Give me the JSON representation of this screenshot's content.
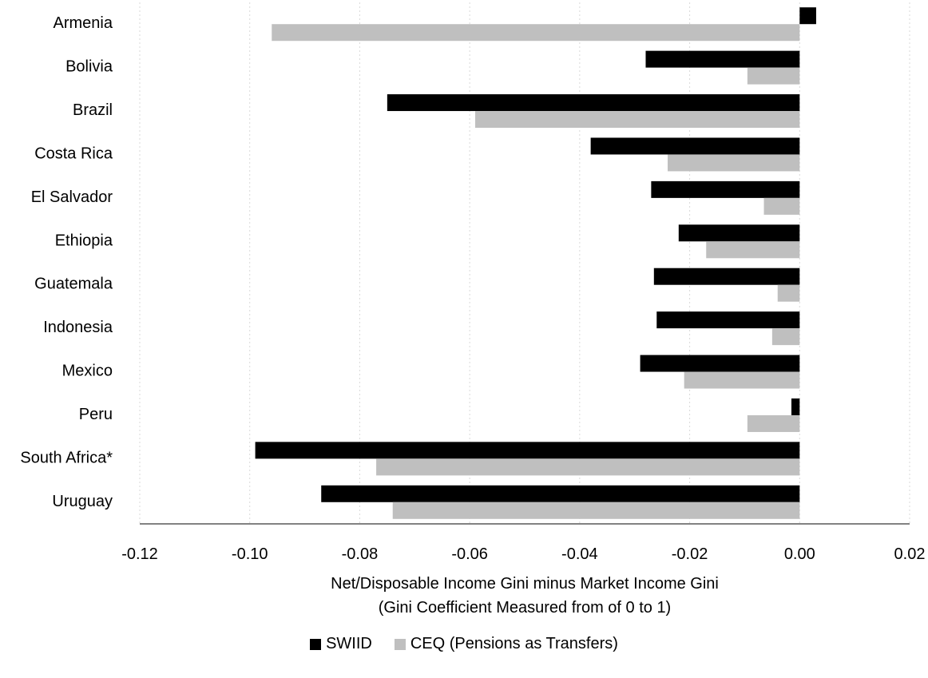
{
  "chart_data": {
    "type": "bar",
    "orientation": "horizontal",
    "categories": [
      "Armenia",
      "Bolivia",
      "Brazil",
      "Costa Rica",
      "El Salvador",
      "Ethiopia",
      "Guatemala",
      "Indonesia",
      "Mexico",
      "Peru",
      "South Africa*",
      "Uruguay"
    ],
    "series": [
      {
        "name": "SWIID",
        "color": "#000000",
        "values": [
          0.003,
          -0.028,
          -0.075,
          -0.038,
          -0.027,
          -0.022,
          -0.0265,
          -0.026,
          -0.029,
          -0.0015,
          -0.099,
          -0.087
        ]
      },
      {
        "name": "CEQ (Pensions as Transfers)",
        "color": "#bfbfbf",
        "values": [
          -0.096,
          -0.0095,
          -0.059,
          -0.024,
          -0.0065,
          -0.017,
          -0.004,
          -0.005,
          -0.021,
          -0.0095,
          -0.077,
          -0.074
        ]
      }
    ],
    "xlim": [
      -0.12,
      0.02
    ],
    "xticks": [
      "-0.12",
      "-0.10",
      "-0.08",
      "-0.06",
      "-0.04",
      "-0.02",
      "0.00",
      "0.02"
    ],
    "xlabel_line1": "Net/Disposable Income Gini minus Market Income Gini",
    "xlabel_line2": "(Gini Coefficient Measured from of 0 to 1)",
    "grid": "vertical dotted",
    "legend_position": "bottom"
  }
}
